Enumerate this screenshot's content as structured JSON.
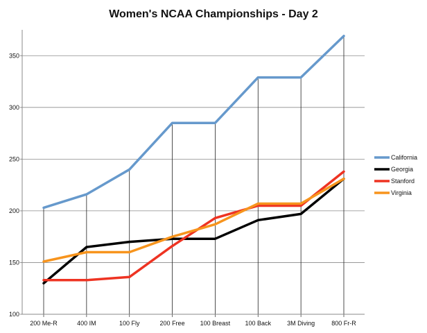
{
  "chart_data": {
    "type": "line",
    "title": "Women's NCAA Championships - Day 2",
    "xlabel": "",
    "ylabel": "",
    "categories": [
      "200 Me-R",
      "400 IM",
      "100 Fly",
      "200 Free",
      "100 Breast",
      "100 Back",
      "3M Diving",
      "800 Fr-R"
    ],
    "ylim": [
      100,
      375
    ],
    "yticks": [
      100,
      150,
      200,
      250,
      300,
      350
    ],
    "grid": true,
    "legend_position": "right",
    "series": [
      {
        "name": "California",
        "color": "#6699cc",
        "values": [
          203,
          216,
          240,
          285,
          285,
          329,
          329,
          369
        ]
      },
      {
        "name": "Georgia",
        "color": "#000000",
        "values": [
          130,
          165,
          170,
          173,
          173,
          191,
          197,
          231
        ]
      },
      {
        "name": "Stanford",
        "color": "#ee3322",
        "values": [
          133,
          133,
          136,
          166,
          193,
          205,
          205,
          238
        ]
      },
      {
        "name": "Virginia",
        "color": "#f7941d",
        "values": [
          151,
          160,
          160,
          175,
          187,
          207,
          207,
          231
        ]
      }
    ]
  }
}
